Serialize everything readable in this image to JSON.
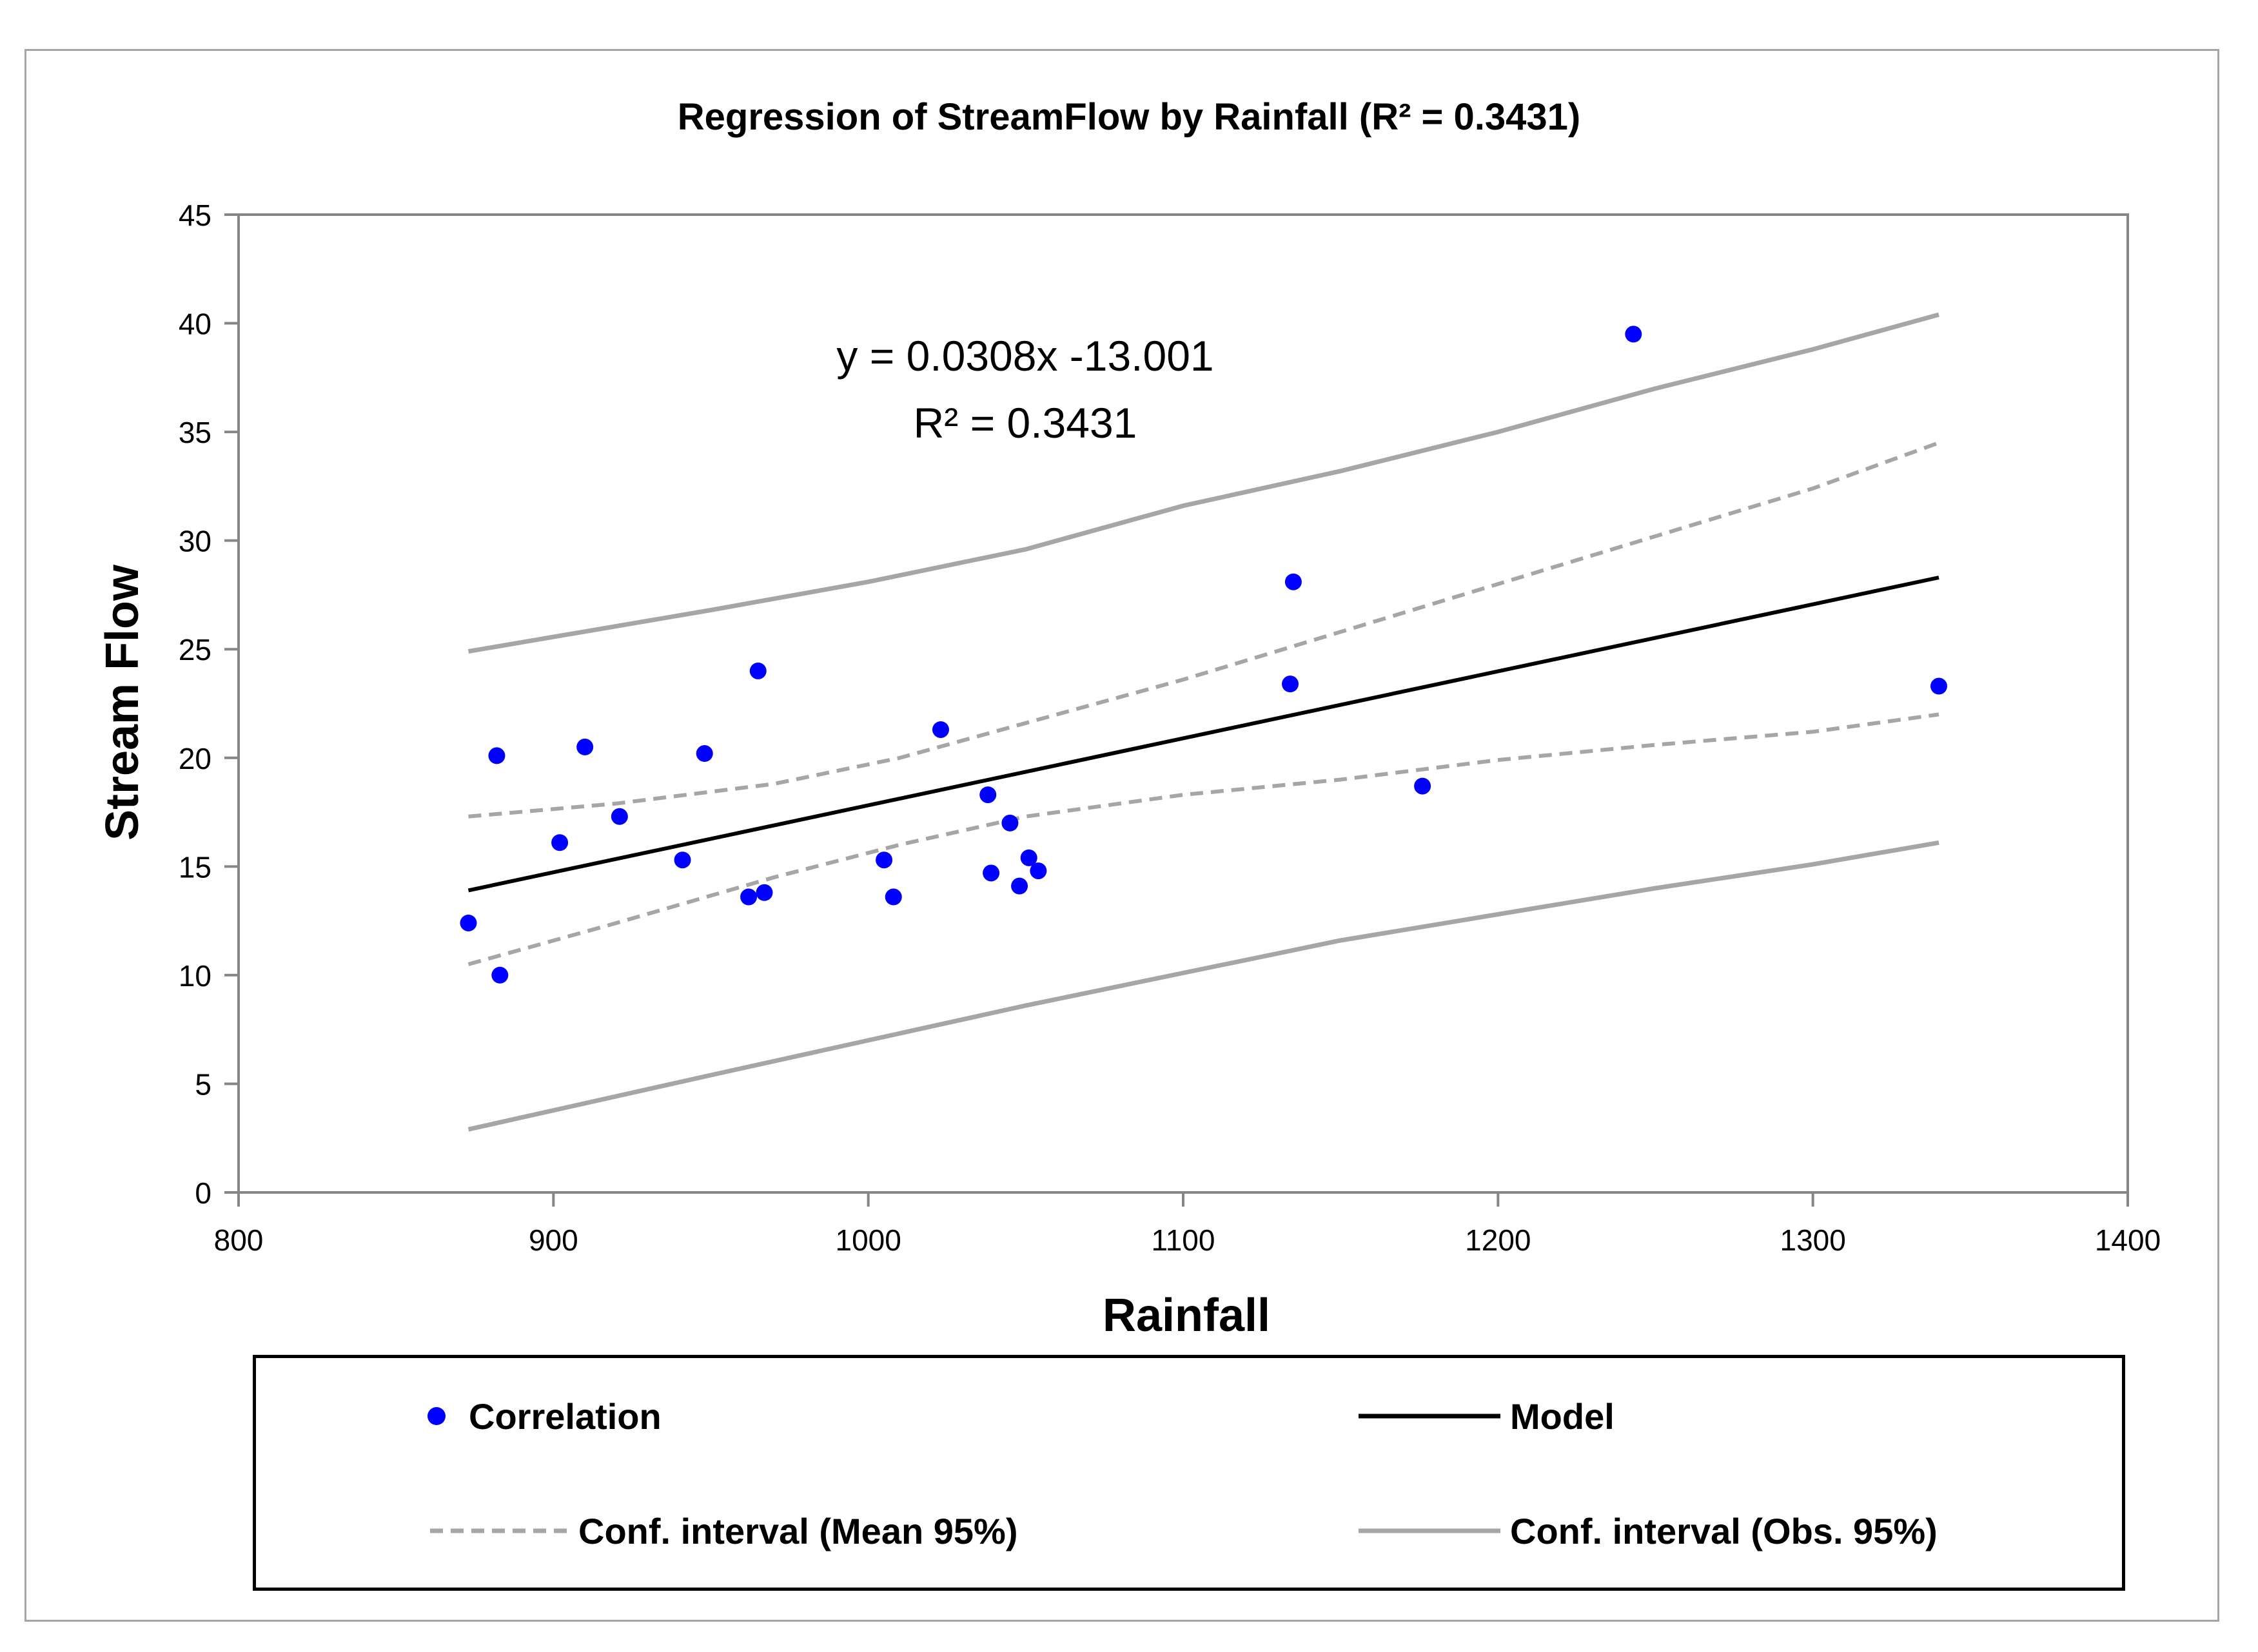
{
  "chart_data": {
    "type": "scatter",
    "title": "Regression of StreamFlow by Rainfall (R² = 0.3431)",
    "xlabel": "Rainfall",
    "ylabel": "Stream Flow",
    "xlim": [
      800,
      1400
    ],
    "ylim": [
      0,
      45
    ],
    "xticks": [
      800,
      900,
      1000,
      1100,
      1200,
      1300,
      1400
    ],
    "yticks": [
      0,
      5,
      10,
      15,
      20,
      25,
      30,
      35,
      40,
      45
    ],
    "grid": false,
    "annotation": {
      "equation": "y = 0.0308x -13.001",
      "r2": "R² = 0.3431"
    },
    "series": [
      {
        "name": "Correlation",
        "kind": "scatter",
        "color": "#0000ff",
        "points": [
          [
            873,
            12.4
          ],
          [
            882,
            20.1
          ],
          [
            883,
            10.0
          ],
          [
            902,
            16.1
          ],
          [
            910,
            20.5
          ],
          [
            921,
            17.3
          ],
          [
            941,
            15.3
          ],
          [
            948,
            20.2
          ],
          [
            962,
            13.6
          ],
          [
            965,
            24.0
          ],
          [
            967,
            13.8
          ],
          [
            1005,
            15.3
          ],
          [
            1008,
            13.6
          ],
          [
            1023,
            21.3
          ],
          [
            1038,
            18.3
          ],
          [
            1039,
            14.7
          ],
          [
            1045,
            17.0
          ],
          [
            1048,
            14.1
          ],
          [
            1051,
            15.4
          ],
          [
            1054,
            14.8
          ],
          [
            1134,
            23.4
          ],
          [
            1135,
            28.1
          ],
          [
            1176,
            18.7
          ],
          [
            1243,
            39.5
          ],
          [
            1340,
            23.3
          ]
        ]
      },
      {
        "name": "Model",
        "kind": "line",
        "color": "#000000",
        "points": [
          [
            873,
            13.9
          ],
          [
            1340,
            28.3
          ]
        ]
      },
      {
        "name": "Conf. interval (Mean 95%)",
        "kind": "dashed",
        "color": "#a6a6a6",
        "upper": [
          [
            873,
            17.3
          ],
          [
            920,
            17.9
          ],
          [
            970,
            18.8
          ],
          [
            1010,
            20.0
          ],
          [
            1050,
            21.6
          ],
          [
            1100,
            23.6
          ],
          [
            1150,
            25.8
          ],
          [
            1200,
            28.0
          ],
          [
            1250,
            30.2
          ],
          [
            1300,
            32.4
          ],
          [
            1340,
            34.5
          ]
        ],
        "lower": [
          [
            873,
            10.5
          ],
          [
            920,
            12.4
          ],
          [
            970,
            14.5
          ],
          [
            1010,
            16.0
          ],
          [
            1050,
            17.3
          ],
          [
            1100,
            18.3
          ],
          [
            1150,
            19.0
          ],
          [
            1200,
            19.9
          ],
          [
            1250,
            20.6
          ],
          [
            1300,
            21.2
          ],
          [
            1340,
            22.0
          ]
        ]
      },
      {
        "name": "Conf. interval (Obs. 95%)",
        "kind": "line",
        "color": "#a6a6a6",
        "upper": [
          [
            873,
            24.9
          ],
          [
            950,
            26.8
          ],
          [
            1000,
            28.1
          ],
          [
            1050,
            29.6
          ],
          [
            1100,
            31.6
          ],
          [
            1150,
            33.2
          ],
          [
            1200,
            35.0
          ],
          [
            1250,
            37.0
          ],
          [
            1300,
            38.8
          ],
          [
            1340,
            40.4
          ]
        ],
        "lower": [
          [
            873,
            2.9
          ],
          [
            950,
            5.4
          ],
          [
            1000,
            7.0
          ],
          [
            1050,
            8.6
          ],
          [
            1100,
            10.1
          ],
          [
            1150,
            11.6
          ],
          [
            1200,
            12.8
          ],
          [
            1250,
            14.0
          ],
          [
            1300,
            15.1
          ],
          [
            1340,
            16.1
          ]
        ]
      }
    ],
    "legend": {
      "placement": "bottom",
      "items": [
        {
          "label": "Correlation",
          "kind": "marker",
          "color": "#0000ff"
        },
        {
          "label": "Model",
          "kind": "line",
          "color": "#000000"
        },
        {
          "label": "Conf. interval (Mean 95%)",
          "kind": "dashed",
          "color": "#a6a6a6"
        },
        {
          "label": "Conf. interval (Obs. 95%)",
          "kind": "line",
          "color": "#a6a6a6"
        }
      ]
    }
  }
}
